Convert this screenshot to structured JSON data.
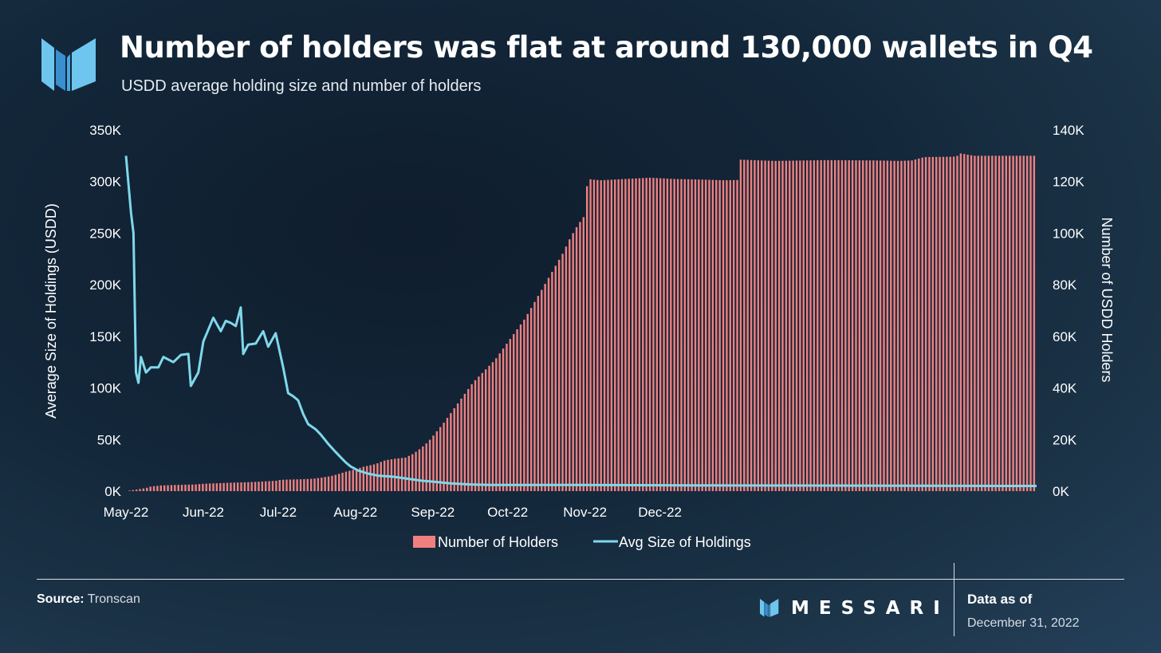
{
  "header": {
    "title": "Number of holders was flat at around 130,000 wallets in Q4",
    "subtitle": "USDD average holding size and number of holders"
  },
  "footer": {
    "source_label": "Source:",
    "source_value": "Tronscan",
    "brand": "MESSARI",
    "data_as_of_label": "Data as of",
    "data_as_of_date": "December 31, 2022"
  },
  "colors": {
    "bars": "#f08080",
    "line": "#7fd8ea",
    "logo_light": "#6ec6ef",
    "logo_dark": "#3a8fd0"
  },
  "chart_data": {
    "type": "bar+line",
    "x_tick_labels": [
      "May-22",
      "Jun-22",
      "Jul-22",
      "Aug-22",
      "Sep-22",
      "Oct-22",
      "Nov-22",
      "Dec-22"
    ],
    "left_axis": {
      "label": "Average Size of Holdings (USDD)",
      "range": [
        0,
        350000
      ],
      "tick_labels": [
        "0K",
        "50K",
        "100K",
        "150K",
        "200K",
        "250K",
        "300K",
        "350K"
      ]
    },
    "right_axis": {
      "label": "Number of USDD Holders",
      "range": [
        0,
        140000
      ],
      "tick_labels": [
        "0K",
        "20K",
        "40K",
        "60K",
        "80K",
        "100K",
        "120K",
        "140K"
      ]
    },
    "legend": {
      "position": "bottom-center",
      "items": [
        "Number of Holders",
        "Avg Size of Holdings"
      ]
    },
    "series": [
      {
        "name": "Number of Holders",
        "type": "bar",
        "axis": "right",
        "points": [
          [
            0,
            0
          ],
          [
            4,
            600
          ],
          [
            8,
            1200
          ],
          [
            10,
            1800
          ],
          [
            14,
            2200
          ],
          [
            20,
            2400
          ],
          [
            24,
            2500
          ],
          [
            28,
            2600
          ],
          [
            30,
            2800
          ],
          [
            40,
            3200
          ],
          [
            50,
            3500
          ],
          [
            60,
            4000
          ],
          [
            62,
            4400
          ],
          [
            70,
            4600
          ],
          [
            75,
            4800
          ],
          [
            78,
            5200
          ],
          [
            82,
            5800
          ],
          [
            85,
            6600
          ],
          [
            88,
            7500
          ],
          [
            92,
            8500
          ],
          [
            95,
            9400
          ],
          [
            100,
            10500
          ],
          [
            104,
            12000
          ],
          [
            108,
            12600
          ],
          [
            112,
            13000
          ],
          [
            115,
            14400
          ],
          [
            118,
            16500
          ],
          [
            121,
            19000
          ],
          [
            124,
            22500
          ],
          [
            127,
            26000
          ],
          [
            130,
            30000
          ],
          [
            133,
            34000
          ],
          [
            136,
            38000
          ],
          [
            139,
            42000
          ],
          [
            142,
            45000
          ],
          [
            145,
            48000
          ],
          [
            148,
            51000
          ],
          [
            151,
            55000
          ],
          [
            154,
            59000
          ],
          [
            157,
            63000
          ],
          [
            160,
            67000
          ],
          [
            163,
            72000
          ],
          [
            166,
            77000
          ],
          [
            169,
            82000
          ],
          [
            172,
            87000
          ],
          [
            175,
            92000
          ],
          [
            178,
            98000
          ],
          [
            181,
            103000
          ],
          [
            184,
            107000
          ],
          [
            185,
            121000
          ],
          [
            190,
            120500
          ],
          [
            200,
            121000
          ],
          [
            210,
            121500
          ],
          [
            220,
            121000
          ],
          [
            230,
            120800
          ],
          [
            240,
            120500
          ],
          [
            245,
            120600
          ],
          [
            246,
            128500
          ],
          [
            260,
            128000
          ],
          [
            280,
            128300
          ],
          [
            300,
            128200
          ],
          [
            310,
            128000
          ],
          [
            315,
            128200
          ],
          [
            320,
            129500
          ],
          [
            330,
            129600
          ],
          [
            333,
            129700
          ],
          [
            334,
            131000
          ],
          [
            340,
            130000
          ],
          [
            365,
            130000
          ]
        ]
      },
      {
        "name": "Avg Size of Holdings",
        "type": "line",
        "axis": "left",
        "points": [
          [
            0,
            325000
          ],
          [
            2,
            270000
          ],
          [
            3,
            250000
          ],
          [
            4,
            115000
          ],
          [
            5,
            105000
          ],
          [
            6,
            130000
          ],
          [
            8,
            115000
          ],
          [
            10,
            120000
          ],
          [
            13,
            120000
          ],
          [
            15,
            130000
          ],
          [
            19,
            125000
          ],
          [
            22,
            132000
          ],
          [
            25,
            133000
          ],
          [
            26,
            102000
          ],
          [
            29,
            115000
          ],
          [
            31,
            145000
          ],
          [
            35,
            168000
          ],
          [
            38,
            155000
          ],
          [
            40,
            165000
          ],
          [
            42,
            163000
          ],
          [
            44,
            160000
          ],
          [
            46,
            178000
          ],
          [
            47,
            133000
          ],
          [
            49,
            142000
          ],
          [
            52,
            143000
          ],
          [
            55,
            155000
          ],
          [
            57,
            140000
          ],
          [
            60,
            153000
          ],
          [
            63,
            120000
          ],
          [
            65,
            95000
          ],
          [
            67,
            92000
          ],
          [
            69,
            88000
          ],
          [
            71,
            75000
          ],
          [
            73,
            65000
          ],
          [
            76,
            60000
          ],
          [
            78,
            55000
          ],
          [
            81,
            46000
          ],
          [
            84,
            38000
          ],
          [
            86,
            33000
          ],
          [
            88,
            28000
          ],
          [
            90,
            24000
          ],
          [
            93,
            20000
          ],
          [
            97,
            17000
          ],
          [
            101,
            15000
          ],
          [
            107,
            14000
          ],
          [
            113,
            12000
          ],
          [
            119,
            10000
          ],
          [
            124,
            9000
          ],
          [
            130,
            7500
          ],
          [
            138,
            6500
          ],
          [
            146,
            6000
          ],
          [
            180,
            6000
          ],
          [
            240,
            5500
          ],
          [
            365,
            5000
          ]
        ]
      }
    ]
  }
}
